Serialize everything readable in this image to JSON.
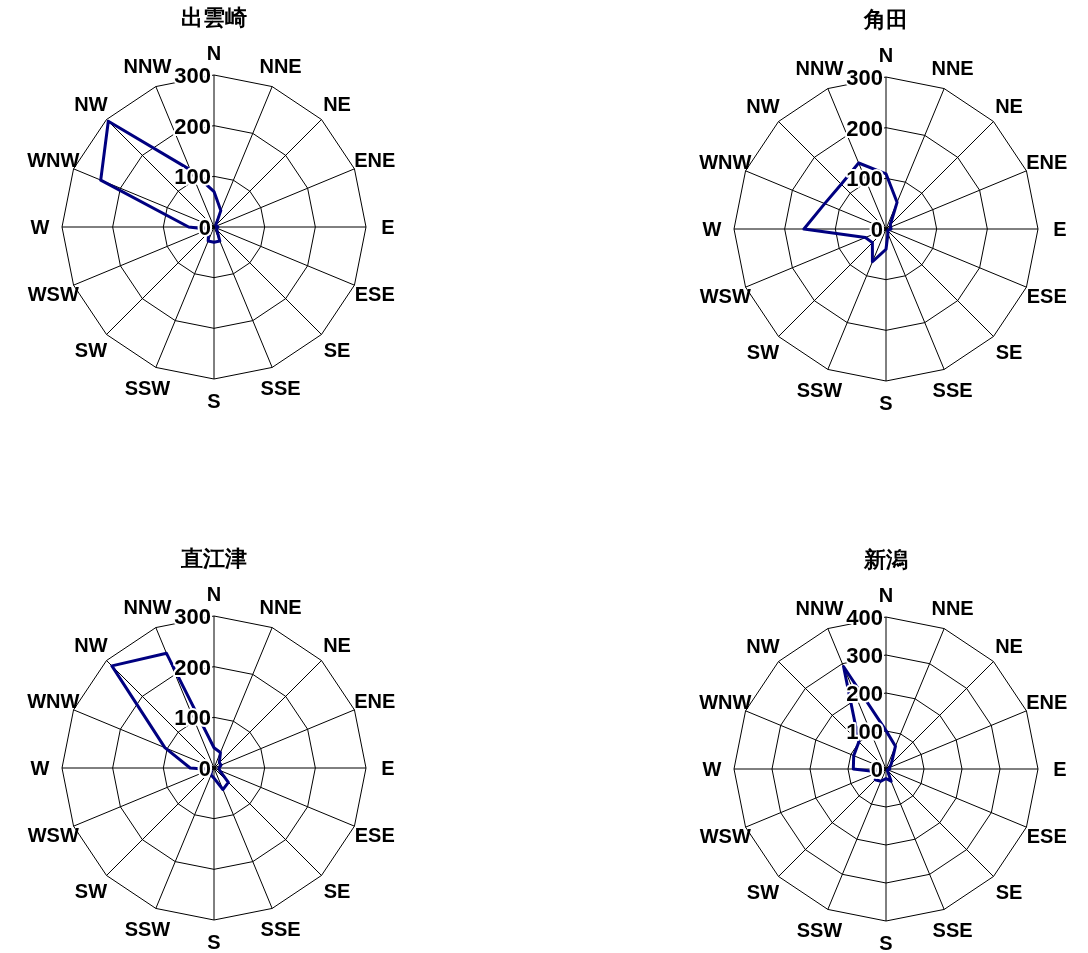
{
  "chart_data": [
    {
      "type": "radar",
      "title": "出雲崎",
      "categories": [
        "N",
        "NNE",
        "NE",
        "ENE",
        "E",
        "ESE",
        "SE",
        "SSE",
        "S",
        "SSW",
        "SW",
        "WSW",
        "W",
        "WNW",
        "NW",
        "NNW"
      ],
      "ylim": [
        0,
        300
      ],
      "yticks": [
        0,
        100,
        200,
        300
      ],
      "series": [
        {
          "color": "#000080",
          "values": [
            70,
            35,
            5,
            5,
            8,
            5,
            8,
            30,
            30,
            30,
            15,
            12,
            50,
            242,
            295,
            122
          ]
        }
      ]
    },
    {
      "type": "radar",
      "title": "角田",
      "categories": [
        "N",
        "NNE",
        "NE",
        "ENE",
        "E",
        "ESE",
        "SE",
        "SSE",
        "S",
        "SSW",
        "SW",
        "WSW",
        "W",
        "WNW",
        "NW",
        "NNW"
      ],
      "ylim": [
        0,
        300
      ],
      "yticks": [
        0,
        100,
        200,
        300
      ],
      "series": [
        {
          "color": "#000080",
          "values": [
            109,
            57,
            12,
            10,
            10,
            5,
            5,
            10,
            40,
            70,
            38,
            44,
            162,
            131,
            125,
            141
          ]
        }
      ]
    },
    {
      "type": "radar",
      "title": "直江津",
      "categories": [
        "N",
        "NNE",
        "NE",
        "ENE",
        "E",
        "ESE",
        "SE",
        "SSE",
        "S",
        "SSW",
        "SW",
        "WSW",
        "W",
        "WNW",
        "NW",
        "NNW"
      ],
      "ylim": [
        0,
        300
      ],
      "yticks": [
        0,
        100,
        200,
        300
      ],
      "series": [
        {
          "color": "#000080",
          "values": [
            40,
            33,
            15,
            15,
            10,
            12,
            40,
            46,
            20,
            15,
            8,
            8,
            47,
            105,
            285,
            245
          ]
        }
      ]
    },
    {
      "type": "radar",
      "title": "新潟",
      "categories": [
        "N",
        "NNE",
        "NE",
        "ENE",
        "E",
        "ESE",
        "SE",
        "SSE",
        "S",
        "SSW",
        "SW",
        "WSW",
        "W",
        "WNW",
        "NW",
        "NNW"
      ],
      "ylim": [
        0,
        400
      ],
      "yticks": [
        0,
        100,
        200,
        300,
        400
      ],
      "series": [
        {
          "color": "#000080",
          "values": [
            101,
            65,
            20,
            10,
            10,
            5,
            5,
            35,
            25,
            35,
            40,
            20,
            86,
            92,
            101,
            292
          ]
        }
      ]
    }
  ]
}
